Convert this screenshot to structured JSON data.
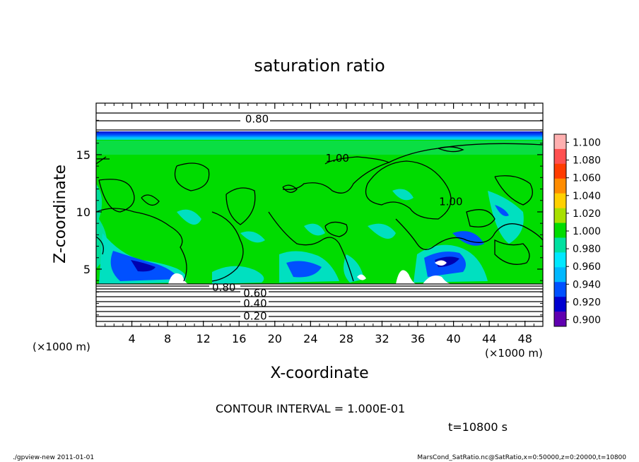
{
  "chart_data": {
    "type": "heatmap",
    "title": "saturation ratio",
    "xlabel": "X-coordinate",
    "ylabel": "Z-coordinate",
    "x_unit": "(×1000 m)",
    "y_unit": "(×1000 m)",
    "xlim": [
      0,
      50
    ],
    "ylim": [
      0,
      19.5
    ],
    "x_ticks": [
      "4",
      "8",
      "12",
      "16",
      "20",
      "24",
      "28",
      "32",
      "36",
      "40",
      "44",
      "48"
    ],
    "y_ticks": [
      "5",
      "10",
      "15"
    ],
    "colorbar": {
      "levels": [
        "1.100",
        "1.080",
        "1.060",
        "1.040",
        "1.020",
        "1.000",
        "0.980",
        "0.960",
        "0.940",
        "0.920",
        "0.900"
      ],
      "colors": [
        "#ffb0b0",
        "#ff5050",
        "#ff3c00",
        "#ff8c00",
        "#ffd000",
        "#a8e000",
        "#00dc00",
        "#00e0a0",
        "#00e8ff",
        "#00b8ff",
        "#0050ff",
        "#0000d0",
        "#6000b0"
      ]
    },
    "contour_labels": [
      {
        "text": "0.80",
        "x": 18,
        "z": 18.1
      },
      {
        "text": "1.00",
        "x": 27,
        "z": 14.7
      },
      {
        "text": "1.00",
        "x": 39.7,
        "z": 10.9
      },
      {
        "text": "0.80",
        "x": 14.3,
        "z": 3.4
      },
      {
        "text": "0.60",
        "x": 17.8,
        "z": 2.9
      },
      {
        "text": "0.40",
        "x": 17.8,
        "z": 2.0
      },
      {
        "text": "0.20",
        "x": 17.8,
        "z": 0.9
      }
    ],
    "contour_interval": "CONTOUR INTERVAL = 1.000E-01",
    "time": "t=10800 s"
  },
  "footer": {
    "left": "./gpview-new  2011-01-01",
    "right": "MarsCond_SatRatio.nc@SatRatio,x=0:50000,z=0:20000,t=10800"
  },
  "colors": {
    "field_green": "#00dc00",
    "band_blue": "#0030ff",
    "deficit_cyan": "#00e0c0",
    "frame": "#000000"
  }
}
